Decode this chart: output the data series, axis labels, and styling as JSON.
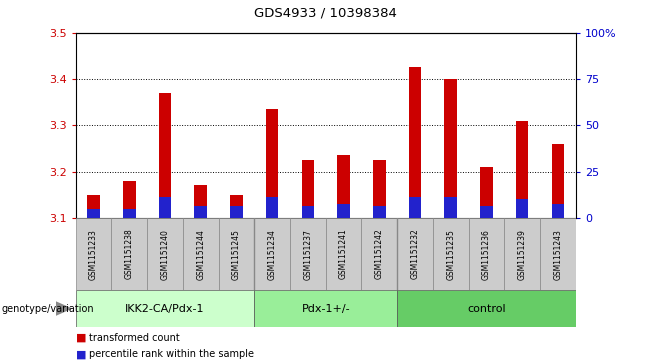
{
  "title": "GDS4933 / 10398384",
  "samples": [
    "GSM1151233",
    "GSM1151238",
    "GSM1151240",
    "GSM1151244",
    "GSM1151245",
    "GSM1151234",
    "GSM1151237",
    "GSM1151241",
    "GSM1151242",
    "GSM1151232",
    "GSM1151235",
    "GSM1151236",
    "GSM1151239",
    "GSM1151243"
  ],
  "red_values": [
    3.15,
    3.18,
    3.37,
    3.17,
    3.15,
    3.335,
    3.225,
    3.235,
    3.225,
    3.425,
    3.4,
    3.21,
    3.31,
    3.26
  ],
  "blue_values": [
    3.12,
    3.12,
    3.145,
    3.125,
    3.125,
    3.145,
    3.125,
    3.13,
    3.125,
    3.145,
    3.145,
    3.125,
    3.14,
    3.13
  ],
  "groups": [
    {
      "label": "IKK2-CA/Pdx-1",
      "start": 0,
      "end": 5,
      "color": "#ccffcc"
    },
    {
      "label": "Pdx-1+/-",
      "start": 5,
      "end": 9,
      "color": "#99ee99"
    },
    {
      "label": "control",
      "start": 9,
      "end": 14,
      "color": "#66cc66"
    }
  ],
  "ylim_left": [
    3.1,
    3.5
  ],
  "ylim_right": [
    0,
    100
  ],
  "yticks_left": [
    3.1,
    3.2,
    3.3,
    3.4,
    3.5
  ],
  "yticks_right": [
    0,
    25,
    50,
    75,
    100
  ],
  "left_tick_color": "#cc0000",
  "right_tick_color": "#0000cc",
  "bar_width": 0.35,
  "sample_bg_color": "#cccccc",
  "plot_bg": "#ffffff",
  "legend_red": "transformed count",
  "legend_blue": "percentile rank within the sample",
  "genotype_label": "genotype/variation",
  "group_boundaries": [
    4.5,
    8.5
  ]
}
